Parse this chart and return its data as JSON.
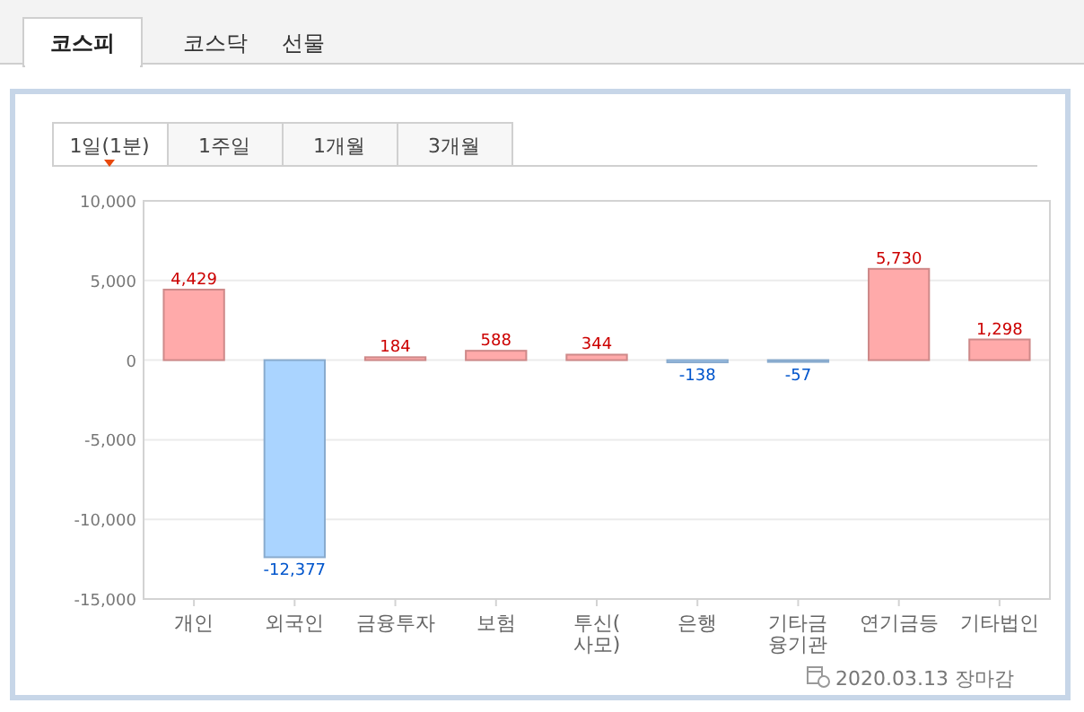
{
  "chart_data": {
    "type": "bar",
    "categories": [
      "개인",
      "외국인",
      "금융투자",
      "보험",
      "투신(사모)",
      "은행",
      "기타금융기관",
      "연기금등",
      "기타법인"
    ],
    "values": [
      4429,
      -12377,
      184,
      588,
      344,
      -138,
      -57,
      5730,
      1298
    ],
    "colors": [
      "#ffaaaa",
      "#aad4ff",
      "#ffaaaa",
      "#ffaaaa",
      "#ffaaaa",
      "#aad4ff",
      "#aad4ff",
      "#ffaaaa",
      "#ffaaaa"
    ],
    "ylim": [
      -15000,
      10000
    ],
    "yticks": [
      {
        "value": -15000,
        "label": "-15,000"
      },
      {
        "value": -10000,
        "label": "-10,000"
      },
      {
        "value": -5000,
        "label": "-5,000"
      },
      0,
      {
        "value": 5000,
        "label": "5,000"
      },
      {
        "value": 10000,
        "label": "10,000"
      }
    ],
    "value_labels": [
      "4,429",
      "-12,377",
      "184",
      "588",
      "344",
      "-138",
      "-57",
      "5,730",
      "1,298"
    ],
    "grid": "y",
    "annotations": [
      "코스피",
      "코스닥",
      "선물",
      "1일(1분)",
      "1주일",
      "1개월",
      "3개월",
      "2020.03.13 장마감"
    ]
  }
}
